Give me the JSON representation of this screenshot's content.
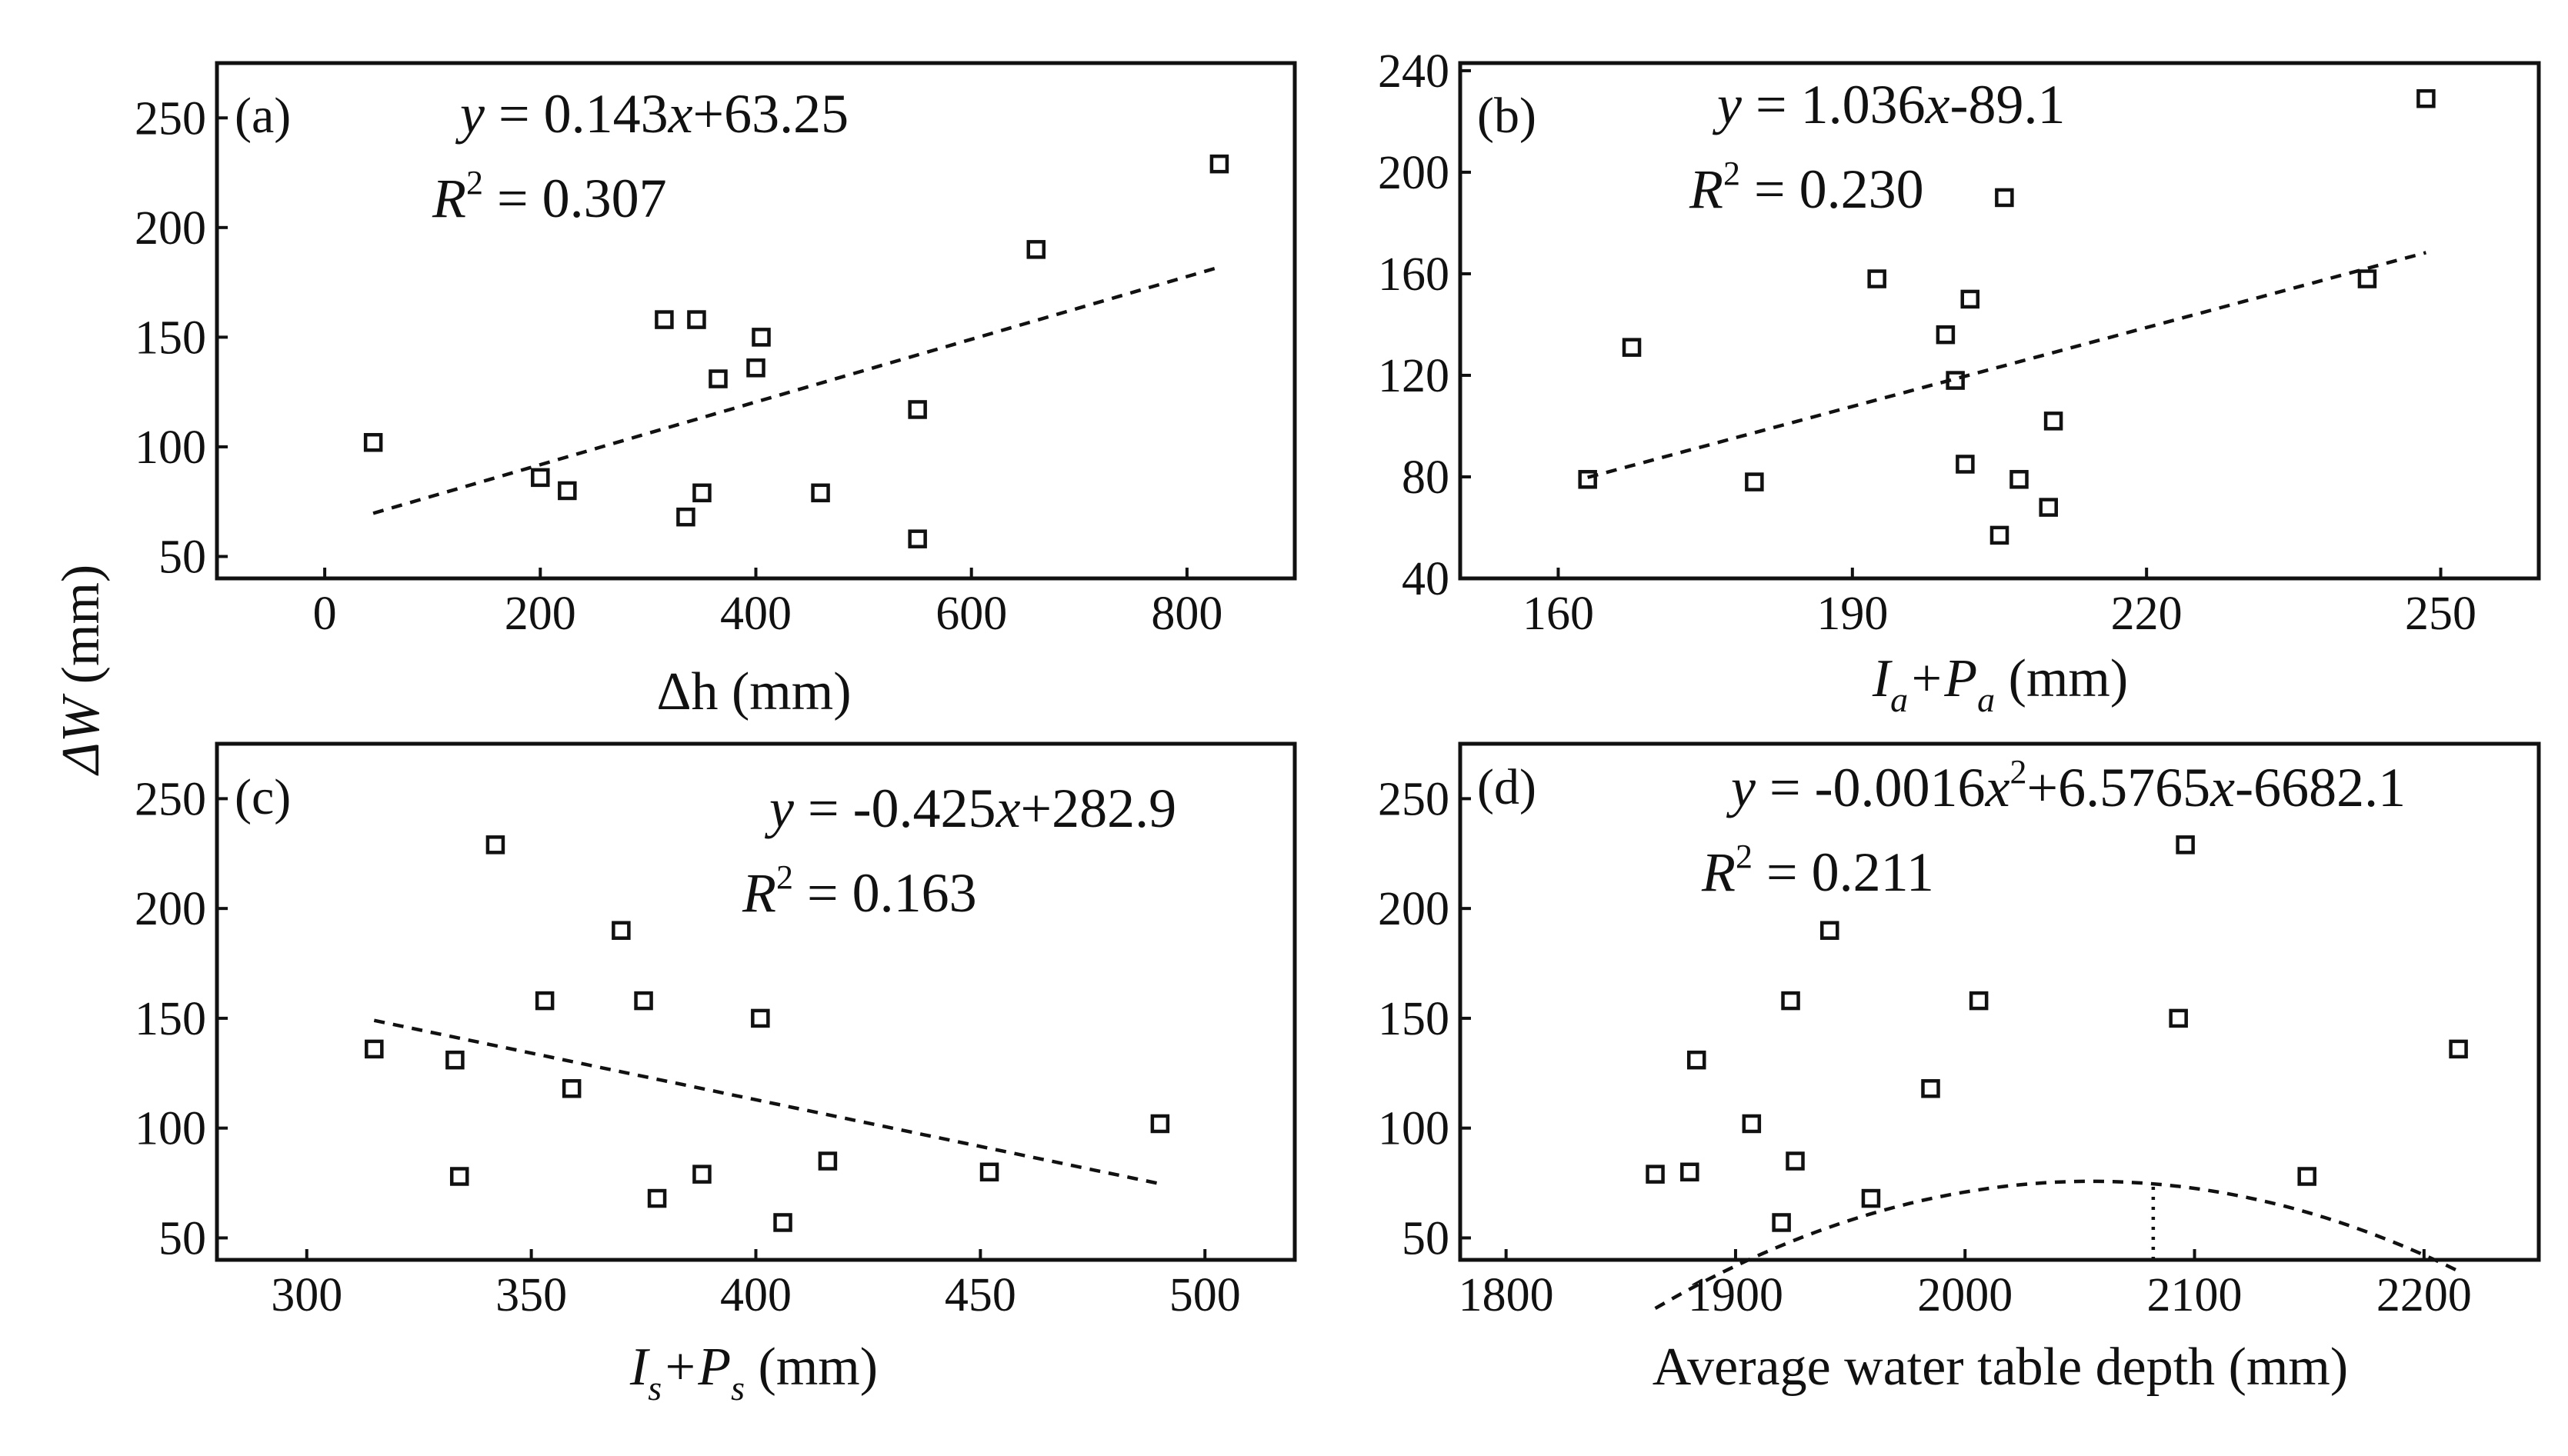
{
  "figure": {
    "shared_ylabel": "ΔW (mm)",
    "shared_ylabel_symbol": "ΔW",
    "shared_ylabel_unit": " (mm)"
  },
  "chart_data": [
    {
      "panel": "(a)",
      "type": "scatter",
      "xlabel": "Δh (mm)",
      "xlabel_symbol": "Δh",
      "xlabel_unit": " (mm)",
      "ylabel": "ΔW (mm)",
      "xlim": [
        -100,
        900
      ],
      "ylim": [
        40,
        275
      ],
      "xticks": [
        0,
        200,
        400,
        600,
        800
      ],
      "yticks": [
        50,
        100,
        150,
        200,
        250
      ],
      "equation": {
        "lhs": "y",
        "text": " = 0.143x+63.25",
        "parts": [
          " = 0.143",
          "x",
          "+63.25"
        ]
      },
      "r2": {
        "label": "R",
        "sup": "2",
        "text": " = 0.307"
      },
      "points": [
        [
          45,
          102
        ],
        [
          200,
          86
        ],
        [
          225,
          80
        ],
        [
          315,
          158
        ],
        [
          345,
          158
        ],
        [
          335,
          68
        ],
        [
          350,
          79
        ],
        [
          365,
          131
        ],
        [
          405,
          150
        ],
        [
          400,
          136
        ],
        [
          460,
          79
        ],
        [
          550,
          117
        ],
        [
          550,
          58
        ],
        [
          660,
          190
        ],
        [
          830,
          229
        ]
      ],
      "fit": {
        "kind": "linear",
        "a": 0.143,
        "b": 63.25,
        "x_range": [
          45,
          830
        ]
      }
    },
    {
      "panel": "(b)",
      "type": "scatter",
      "xlabel": "Ia+Pa (mm)",
      "xlabel_parts": [
        "I",
        "a",
        "+P",
        "a",
        " (mm)"
      ],
      "ylabel": "ΔW (mm)",
      "xlim": [
        150,
        260
      ],
      "ylim": [
        40,
        243
      ],
      "xticks": [
        160,
        190,
        220,
        250
      ],
      "yticks": [
        40,
        80,
        120,
        160,
        200,
        240
      ],
      "equation": {
        "lhs": "y",
        "text": " = 1.036x-89.1",
        "parts": [
          " = 1.036",
          "x",
          "-89.1"
        ]
      },
      "r2": {
        "label": "R",
        "sup": "2",
        "text": " = 0.230"
      },
      "points": [
        [
          163,
          79
        ],
        [
          167.5,
          131
        ],
        [
          180,
          78
        ],
        [
          192.5,
          158
        ],
        [
          199.5,
          136
        ],
        [
          200.5,
          118
        ],
        [
          201.5,
          85
        ],
        [
          202,
          150
        ],
        [
          205,
          57
        ],
        [
          205.5,
          190
        ],
        [
          207,
          79
        ],
        [
          210,
          68
        ],
        [
          210.5,
          102
        ],
        [
          242.5,
          158
        ],
        [
          248.5,
          229
        ]
      ],
      "fit": {
        "kind": "linear",
        "a": 1.036,
        "b": -89.1,
        "x_range": [
          163,
          248.5
        ]
      }
    },
    {
      "panel": "(c)",
      "type": "scatter",
      "xlabel": "Is+Ps (mm)",
      "xlabel_parts": [
        "I",
        "s",
        "+P",
        "s",
        " (mm)"
      ],
      "ylabel": "ΔW (mm)",
      "xlim": [
        280,
        520
      ],
      "ylim": [
        40,
        275
      ],
      "xticks": [
        300,
        350,
        400,
        450,
        500
      ],
      "yticks": [
        50,
        100,
        150,
        200,
        250
      ],
      "equation": {
        "lhs": "y",
        "text": " = -0.425x+282.9",
        "parts": [
          " = -0.425",
          "x",
          "+282.9"
        ]
      },
      "r2": {
        "label": "R",
        "sup": "2",
        "text": " = 0.163"
      },
      "points": [
        [
          315,
          136
        ],
        [
          333,
          131
        ],
        [
          334,
          78
        ],
        [
          342,
          229
        ],
        [
          353,
          158
        ],
        [
          359,
          118
        ],
        [
          370,
          190
        ],
        [
          375,
          158
        ],
        [
          378,
          68
        ],
        [
          388,
          79
        ],
        [
          401,
          150
        ],
        [
          406,
          57
        ],
        [
          416,
          85
        ],
        [
          452,
          80
        ],
        [
          490,
          102
        ]
      ],
      "fit": {
        "kind": "linear",
        "a": -0.425,
        "b": 282.9,
        "x_range": [
          315,
          490
        ]
      }
    },
    {
      "panel": "(d)",
      "type": "scatter",
      "xlabel": "Average water table depth (mm)",
      "ylabel": "ΔW (mm)",
      "xlim": [
        1780,
        2250
      ],
      "ylim": [
        40,
        275
      ],
      "xticks": [
        1800,
        1900,
        2000,
        2100,
        2200
      ],
      "yticks": [
        50,
        100,
        150,
        200,
        250
      ],
      "equation": {
        "lhs": "y",
        "text": " = -0.0016x²+6.5765x-6682.1",
        "parts": [
          " = -0.0016",
          "x",
          "2",
          "+6.5765",
          "x",
          "-6682.1"
        ]
      },
      "r2": {
        "label": "R",
        "sup": "2",
        "text": " = 0.211"
      },
      "points": [
        [
          1865,
          79
        ],
        [
          1880,
          80
        ],
        [
          1883,
          131
        ],
        [
          1907,
          102
        ],
        [
          1920,
          57
        ],
        [
          1924,
          158
        ],
        [
          1926,
          85
        ],
        [
          1941,
          190
        ],
        [
          1959,
          68
        ],
        [
          1985,
          118
        ],
        [
          2006,
          158
        ],
        [
          2093,
          150
        ],
        [
          2096,
          229
        ],
        [
          2149,
          78
        ],
        [
          2215,
          136
        ]
      ],
      "fit": {
        "kind": "quadratic",
        "a": -0.0016,
        "b": 6.5765,
        "c": -6682.1,
        "x_range": [
          1865,
          2215
        ]
      },
      "vertex_marker_x": 2082
    }
  ]
}
